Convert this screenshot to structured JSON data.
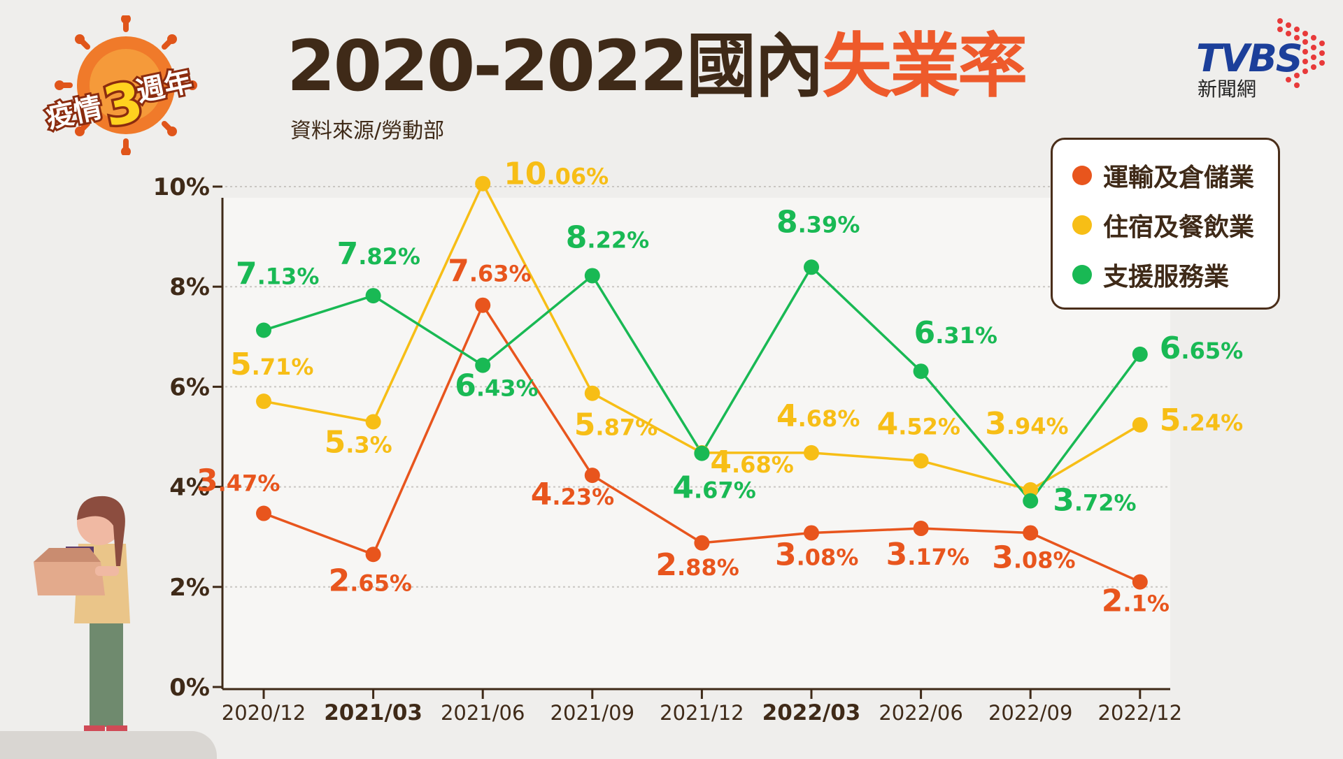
{
  "badge": {
    "text_left": "疫情",
    "text_number": "3",
    "text_right": "週年"
  },
  "header": {
    "title_main": "2020-2022國內",
    "title_accent": "失業率",
    "source": "資料來源/勞動部"
  },
  "logo": {
    "brand": "TVBS",
    "sub": "新聞網"
  },
  "colors": {
    "transport": "#e8551d",
    "lodging": "#f7be16",
    "support": "#19b954",
    "title": "#3f2a18",
    "accent": "#ee5a2b"
  },
  "legend": {
    "items": [
      {
        "label": "運輸及倉儲業",
        "color": "#e8551d"
      },
      {
        "label": "住宿及餐飲業",
        "color": "#f7be16"
      },
      {
        "label": "支援服務業",
        "color": "#19b954"
      }
    ]
  },
  "chart_data": {
    "type": "line",
    "categories": [
      "2020/12",
      "2021/03",
      "2021/06",
      "2021/09",
      "2021/12",
      "2022/03",
      "2022/06",
      "2022/09",
      "2022/12"
    ],
    "bold_categories": [
      "2021/03",
      "2022/03"
    ],
    "y_ticks": [
      "0%",
      "2%",
      "4%",
      "6%",
      "8%",
      "10%"
    ],
    "ylim": [
      0,
      10
    ],
    "series": [
      {
        "name": "運輸及倉儲業",
        "color": "#e8551d",
        "values": [
          3.47,
          2.65,
          7.63,
          4.23,
          2.88,
          3.08,
          3.17,
          3.08,
          2.1
        ],
        "labels": [
          [
            "3",
            ".47%"
          ],
          [
            "2",
            ".65%"
          ],
          [
            "7",
            ".63%"
          ],
          [
            "4",
            ".23%"
          ],
          [
            "2",
            ".88%"
          ],
          [
            "3",
            ".08%"
          ],
          [
            "3",
            ".17%"
          ],
          [
            "3",
            ".08%"
          ],
          [
            "2",
            ".1%"
          ]
        ]
      },
      {
        "name": "住宿及餐飲業",
        "color": "#f7be16",
        "values": [
          5.71,
          5.3,
          10.06,
          5.87,
          4.68,
          4.68,
          4.52,
          3.94,
          5.24
        ],
        "labels": [
          [
            "5",
            ".71%"
          ],
          [
            "5",
            ".3%"
          ],
          [
            "10",
            ".06%"
          ],
          [
            "5",
            ".87%"
          ],
          [
            "4",
            ".68%"
          ],
          [
            "4",
            ".68%"
          ],
          [
            "4",
            ".52%"
          ],
          [
            "3",
            ".94%"
          ],
          [
            "5",
            ".24%"
          ]
        ]
      },
      {
        "name": "支援服務業",
        "color": "#19b954",
        "values": [
          7.13,
          7.82,
          6.43,
          8.22,
          4.67,
          8.39,
          6.31,
          3.72,
          6.65
        ],
        "labels": [
          [
            "7",
            ".13%"
          ],
          [
            "7",
            ".82%"
          ],
          [
            "6",
            ".43%"
          ],
          [
            "8",
            ".22%"
          ],
          [
            "4",
            ".67%"
          ],
          [
            "8",
            ".39%"
          ],
          [
            "6",
            ".31%"
          ],
          [
            "3",
            ".72%"
          ],
          [
            "6",
            ".65%"
          ]
        ]
      }
    ]
  }
}
